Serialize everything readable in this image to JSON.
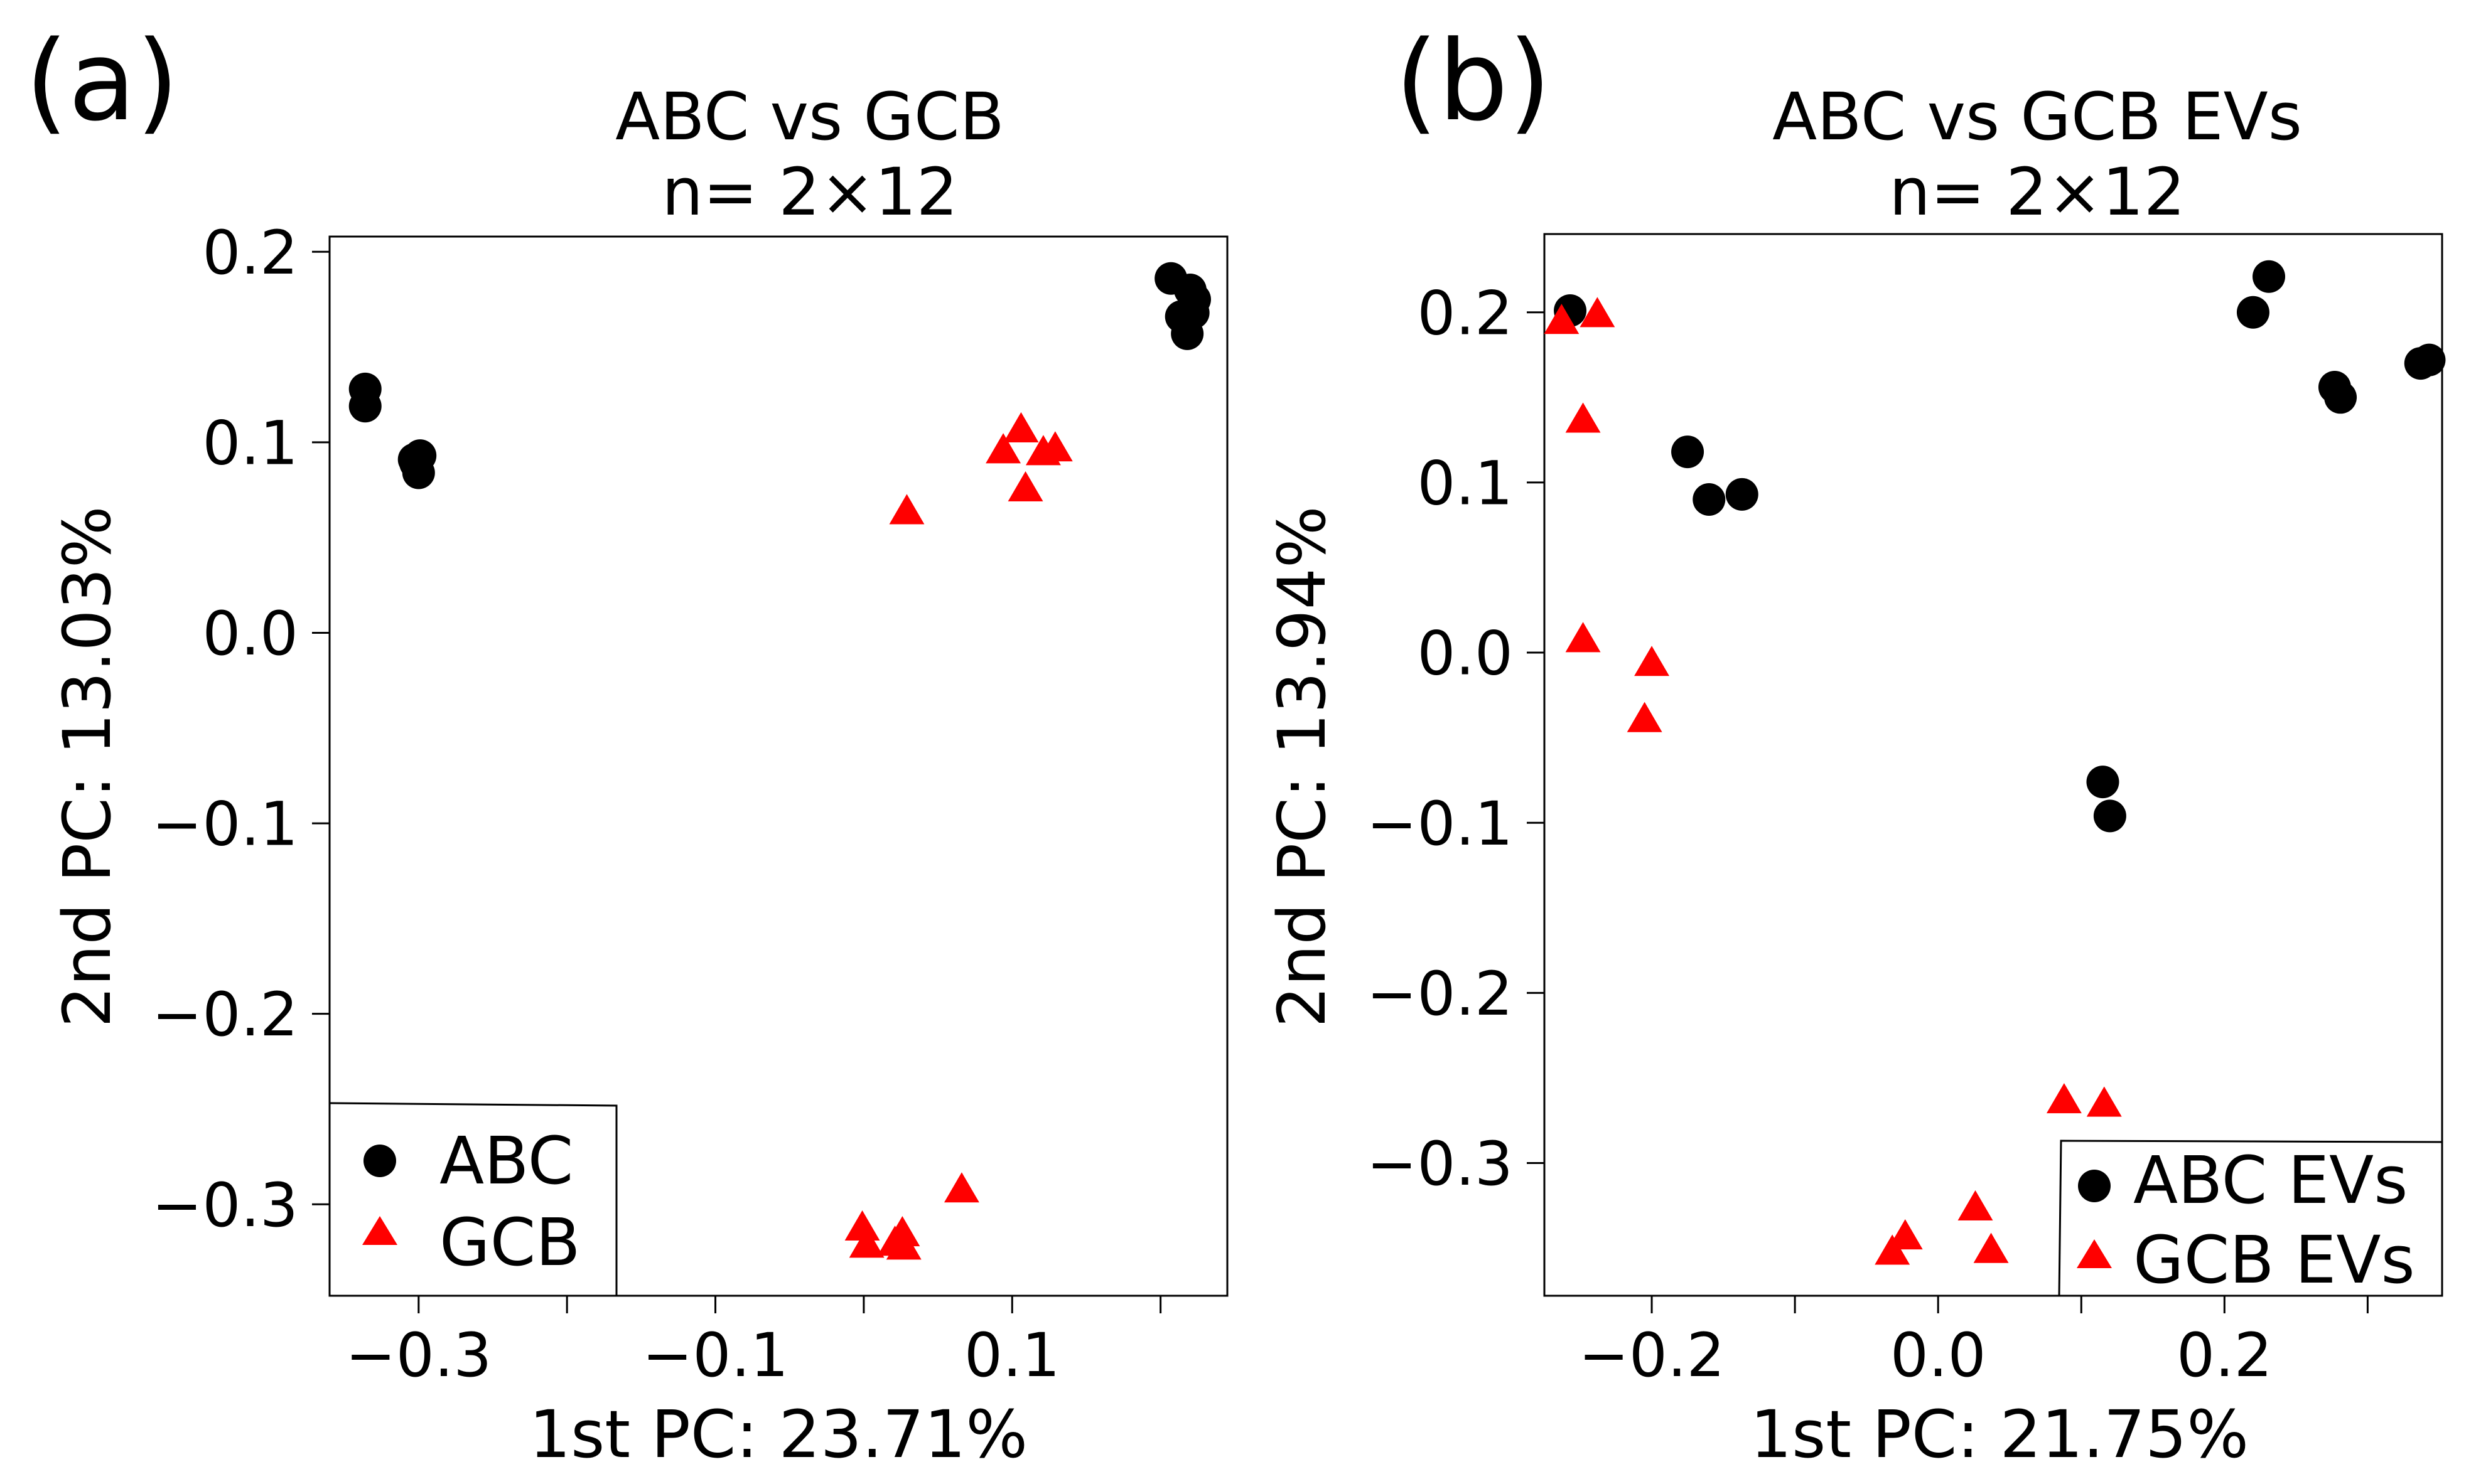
{
  "chart_data": [
    {
      "panel_label": "(a)",
      "type": "scatter",
      "title": "ABC vs GCB",
      "subtitle": "n= 2×12",
      "xlabel": "1st PC: 23.71%",
      "ylabel": "2nd PC: 13.03%",
      "xlim": [
        -0.36,
        0.245
      ],
      "ylim": [
        -0.348,
        0.208
      ],
      "x_ticks": [
        -0.3,
        -0.2,
        -0.1,
        0.0,
        0.1,
        0.2
      ],
      "x_tick_labels": [
        "−0.3",
        "",
        "−0.1",
        "",
        "0.1",
        ""
      ],
      "y_ticks": [
        -0.3,
        -0.2,
        -0.1,
        0.0,
        0.1,
        0.2
      ],
      "y_tick_labels": [
        "−0.3",
        "−0.2",
        "−0.1",
        "0.0",
        "0.1",
        "0.2"
      ],
      "legend_position": "bottom-left",
      "series": [
        {
          "name": "ABC",
          "marker": "circle",
          "color": "#000000",
          "points": [
            [
              -0.336,
              0.128
            ],
            [
              -0.336,
              0.119
            ],
            [
              -0.302,
              0.089
            ],
            [
              -0.299,
              0.093
            ],
            [
              -0.3,
              0.084
            ],
            [
              0.207,
              0.186
            ],
            [
              0.22,
              0.18
            ],
            [
              0.223,
              0.175
            ],
            [
              0.214,
              0.166
            ],
            [
              0.218,
              0.157
            ],
            [
              0.222,
              0.168
            ],
            [
              -0.303,
              0.091
            ]
          ]
        },
        {
          "name": "GCB",
          "marker": "triangle",
          "color": "#ff0000",
          "points": [
            [
              0.029,
              0.063
            ],
            [
              0.106,
              0.106
            ],
            [
              0.094,
              0.095
            ],
            [
              0.129,
              0.096
            ],
            [
              0.121,
              0.094
            ],
            [
              0.109,
              0.075
            ],
            [
              -0.001,
              -0.313
            ],
            [
              0.002,
              -0.322
            ],
            [
              0.026,
              -0.316
            ],
            [
              0.021,
              -0.321
            ],
            [
              0.027,
              -0.323
            ],
            [
              0.066,
              -0.293
            ]
          ]
        }
      ]
    },
    {
      "panel_label": "(b)",
      "type": "scatter",
      "title": "ABC vs GCB EVs",
      "subtitle": "n= 2×12",
      "xlabel": "1st PC: 21.75%",
      "ylabel": "2nd PC: 13.94%",
      "xlim": [
        -0.275,
        0.352
      ],
      "ylim": [
        -0.378,
        0.246
      ],
      "x_ticks": [
        -0.2,
        -0.1,
        0.0,
        0.1,
        0.2,
        0.3
      ],
      "x_tick_labels": [
        "−0.2",
        "",
        "0.0",
        "",
        "0.2",
        ""
      ],
      "y_ticks": [
        -0.3,
        -0.2,
        -0.1,
        0.0,
        0.1,
        0.2
      ],
      "y_tick_labels": [
        "−0.3",
        "−0.2",
        "−0.1",
        "0.0",
        "0.1",
        "0.2"
      ],
      "legend_position": "bottom-right",
      "series": [
        {
          "name": "ABC EVs",
          "marker": "circle",
          "color": "#000000",
          "points": [
            [
              -0.257,
              0.201
            ],
            [
              -0.175,
              0.118
            ],
            [
              -0.16,
              0.09
            ],
            [
              -0.137,
              0.093
            ],
            [
              0.115,
              -0.076
            ],
            [
              0.12,
              -0.096
            ],
            [
              0.22,
              0.2
            ],
            [
              0.231,
              0.221
            ],
            [
              0.277,
              0.156
            ],
            [
              0.281,
              0.15
            ],
            [
              0.337,
              0.17
            ],
            [
              0.343,
              0.172
            ]
          ]
        },
        {
          "name": "GCB EVs",
          "marker": "triangle",
          "color": "#ff0000",
          "points": [
            [
              -0.263,
              0.194
            ],
            [
              -0.238,
              0.198
            ],
            [
              -0.248,
              0.136
            ],
            [
              -0.248,
              0.007
            ],
            [
              -0.2,
              -0.007
            ],
            [
              -0.205,
              -0.04
            ],
            [
              -0.032,
              -0.353
            ],
            [
              -0.023,
              -0.344
            ],
            [
              0.026,
              -0.327
            ],
            [
              0.037,
              -0.352
            ],
            [
              0.088,
              -0.264
            ],
            [
              0.116,
              -0.266
            ]
          ]
        }
      ]
    }
  ]
}
